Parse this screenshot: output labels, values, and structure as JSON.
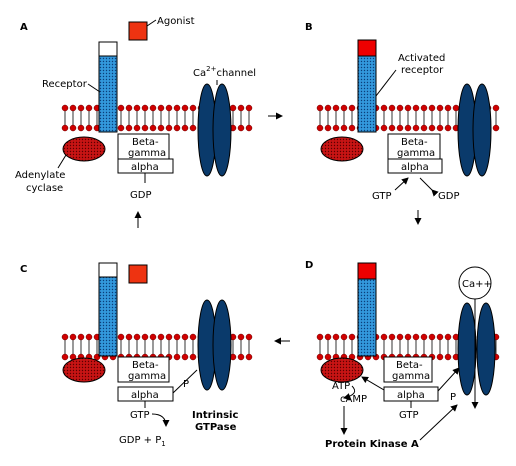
{
  "panels": {
    "a": {
      "letter": "A",
      "agonist": "Agonist",
      "receptor": "Receptor",
      "channel_pre": "Ca",
      "channel_sup": "2+",
      "channel_post": "channel",
      "cyclase_line1": "Adenylate",
      "cyclase_line2": "cyclase",
      "beta_line1": "Beta-",
      "beta_line2": "gamma",
      "alpha": "alpha",
      "gdp": "GDP"
    },
    "b": {
      "letter": "B",
      "receptor_line1": "Activated",
      "receptor_line2": "receptor",
      "beta_line1": "Beta-",
      "beta_line2": "gamma",
      "alpha": "alpha",
      "gtp": "GTP",
      "gdp": "GDP"
    },
    "c": {
      "letter": "C",
      "beta_line1": "Beta-",
      "beta_line2": "gamma",
      "alpha": "alpha",
      "p": "P",
      "gtp": "GTP",
      "gdp_p1_main": "GDP + P",
      "gdp_p1_sub": "1",
      "gtpase_line1": "Intrinsic",
      "gtpase_line2": "GTPase"
    },
    "d": {
      "letter": "D",
      "ca": "Ca++",
      "beta_line1": "Beta-",
      "beta_line2": "gamma",
      "alpha": "alpha",
      "p": "P",
      "gtp": "GTP",
      "atp": "ATP",
      "camp": "cAMP",
      "pka": "Protein Kinase A"
    }
  },
  "colors": {
    "lipid_head": "#d00000",
    "cyclase": "#c81414",
    "channel": "#0a3a6b",
    "receptor_body": "#3399dd",
    "agonist": "#ee3311",
    "activated_cap": "#ee0000"
  }
}
